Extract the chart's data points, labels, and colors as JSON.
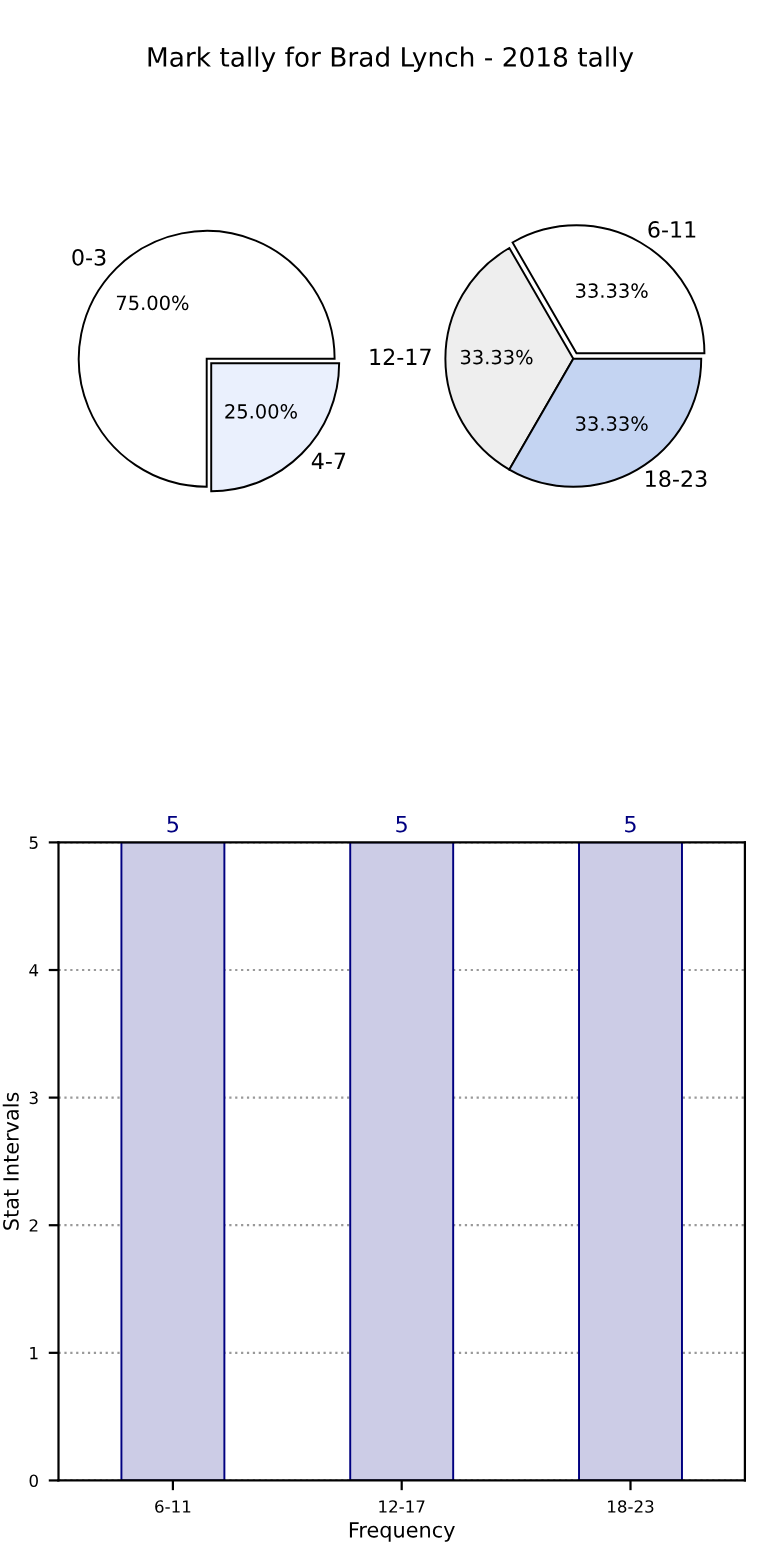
{
  "chart_data": [
    {
      "type": "pie",
      "title": "Mark tally for Brad Lynch - 2018 tally",
      "categories": [
        "0-3",
        "4-7"
      ],
      "values": [
        75,
        25
      ],
      "colors": [
        "#ffffff",
        "#eaf0fd"
      ],
      "value_labels": [
        "75.00%",
        "25.00%"
      ]
    },
    {
      "type": "pie",
      "categories": [
        "6-11",
        "12-17",
        "18-23"
      ],
      "values": [
        33.33,
        33.33,
        33.33
      ],
      "colors": [
        "#ffffff",
        "#eeeeee",
        "#c4d4f2"
      ],
      "value_labels": [
        "33.33%",
        "33.33%",
        "33.33%"
      ]
    },
    {
      "type": "bar",
      "categories": [
        "6-11",
        "12-17",
        "18-23"
      ],
      "values": [
        5,
        5,
        5
      ],
      "color": "#cccce6",
      "ylim": [
        0,
        5
      ],
      "yticks": [
        0,
        1,
        2,
        3,
        4,
        5
      ],
      "grid": true,
      "data_labels": true,
      "xlabel": "Frequency",
      "ylabel": "Stat Intervals"
    }
  ]
}
